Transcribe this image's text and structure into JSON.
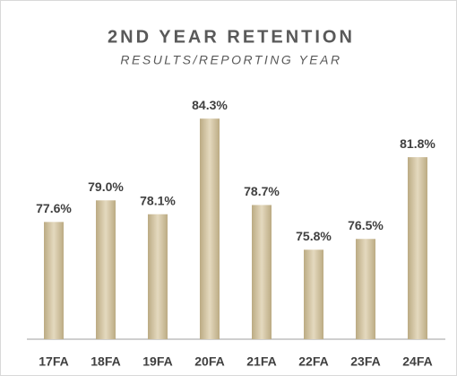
{
  "chart_data": {
    "type": "bar",
    "title": "2ND YEAR RETENTION",
    "subtitle": "RESULTS/REPORTING YEAR",
    "categories": [
      "17FA",
      "18FA",
      "19FA",
      "20FA",
      "21FA",
      "22FA",
      "23FA",
      "24FA"
    ],
    "values": [
      77.6,
      79.0,
      78.1,
      84.3,
      78.7,
      75.8,
      76.5,
      81.8
    ],
    "value_labels": [
      "77.6%",
      "79.0%",
      "78.1%",
      "84.3%",
      "78.7%",
      "75.8%",
      "76.5%",
      "81.8%"
    ],
    "color": "#d6c59c",
    "ylim": [
      70,
      86
    ]
  }
}
